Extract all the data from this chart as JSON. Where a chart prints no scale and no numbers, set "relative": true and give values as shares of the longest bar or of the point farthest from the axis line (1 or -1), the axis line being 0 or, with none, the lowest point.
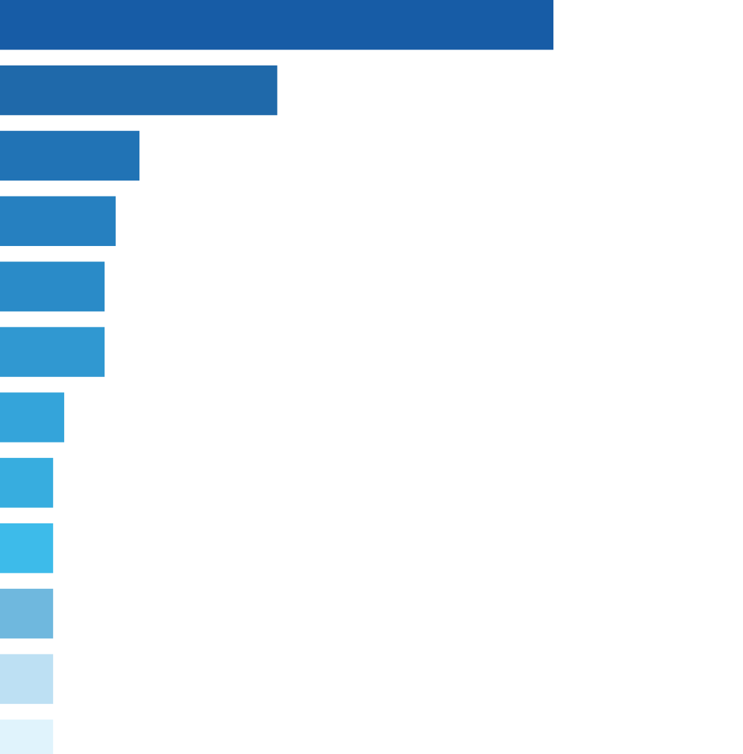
{
  "chart_data": {
    "type": "bar",
    "orientation": "horizontal",
    "relative": true,
    "categories": [
      null,
      null,
      null,
      null,
      null,
      null,
      null,
      null,
      null,
      null,
      null,
      null
    ],
    "values": [
      1,
      0.501,
      0.252,
      0.209,
      0.189,
      0.189,
      0.116,
      0.096,
      0.096,
      0.096,
      0.096,
      0.096
    ],
    "colors": [
      "#175ca6",
      "#1f69aa",
      "#2173b5",
      "#2680c0",
      "#2a8bc8",
      "#3098d1",
      "#34a4da",
      "#37addf",
      "#3dbbea",
      "#6fb8de",
      "#bde0f3",
      "#e0f3fc"
    ]
  }
}
